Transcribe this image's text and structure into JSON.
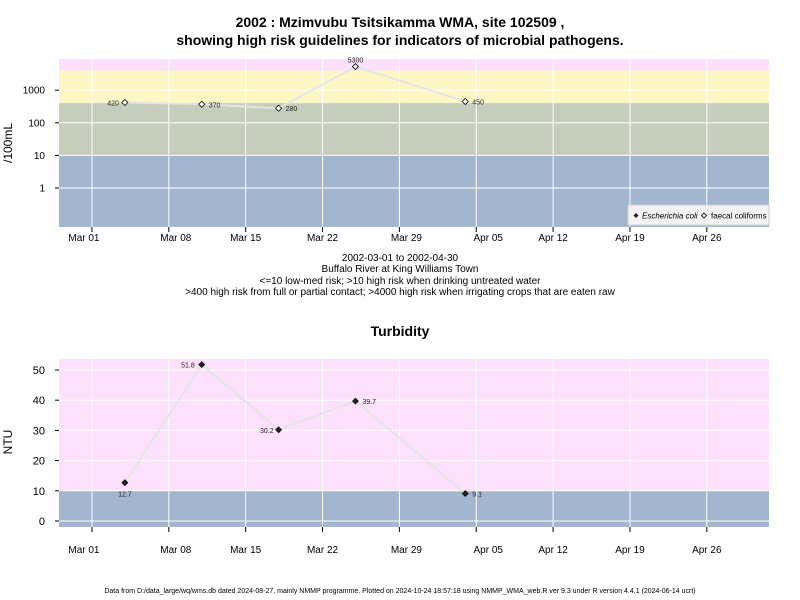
{
  "top_chart": {
    "title_line1": "2002 : Mzimvubu Tsitsikamma WMA, site 102509 ,",
    "title_line2": "showing high risk guidelines for indicators of microbial pathogens.",
    "ylabel": "/100mL",
    "subtitle_lines": [
      "2002-03-01 to 2002-04-30",
      "Buffalo River at King Williams Town",
      "<=10 low-med risk; >10 high risk when drinking untreated water",
      ">400 high risk from full or partial contact; >4000 high risk when irrigating crops that are eaten raw"
    ],
    "legend": {
      "ecoli": "Escherichia coli",
      "faecal": "faecal coliforms"
    }
  },
  "bottom_chart": {
    "title": "Turbidity",
    "ylabel": "NTU"
  },
  "footer": "Data from D:/data_large/wq/wms.db dated 2024-08-27, mainly NMMP programme. Plotted on 2024-10-24 18:57:18 using NMMP_WMA_web.R ver 9.3 under R version 4.4.1 (2024-06-14 ucrt)",
  "colors": {
    "band_blue": "#a3b5cf",
    "band_grey": "#c5cdbd",
    "band_yellow": "#fdf7c5",
    "band_pink": "#fde0fb",
    "line": "#e4e4e4",
    "grid": "#ffffff"
  },
  "chart_data": [
    {
      "type": "line",
      "title": "2002 : Mzimvubu Tsitsikamma WMA, site 102509 , showing high risk guidelines for indicators of microbial pathogens.",
      "ylabel": "/100mL",
      "yscale": "log",
      "x_ticks": [
        "Mar 01",
        "Mar 08",
        "Mar 15",
        "Mar 22",
        "Mar 29",
        "Apr 05",
        "Apr 12",
        "Apr 19",
        "Apr 26"
      ],
      "y_ticks": [
        "1",
        "10",
        "100",
        "1000"
      ],
      "thresholds": [
        10,
        400,
        4000
      ],
      "legend_position": "bottom-right",
      "series": [
        {
          "name": "faecal coliforms",
          "points": [
            {
              "x": "2002-03-04",
              "y": 420
            },
            {
              "x": "2002-03-11",
              "y": 370
            },
            {
              "x": "2002-03-18",
              "y": 280
            },
            {
              "x": "2002-03-25",
              "y": 5300
            },
            {
              "x": "2002-04-04",
              "y": 450
            }
          ]
        },
        {
          "name": "Escherichia coli",
          "points": []
        }
      ]
    },
    {
      "type": "line",
      "title": "Turbidity",
      "ylabel": "NTU",
      "x_ticks": [
        "Mar 01",
        "Mar 08",
        "Mar 15",
        "Mar 22",
        "Mar 29",
        "Apr 05",
        "Apr 12",
        "Apr 19",
        "Apr 26"
      ],
      "y_ticks": [
        "0",
        "10",
        "20",
        "30",
        "40",
        "50"
      ],
      "threshold": 10,
      "series": [
        {
          "name": "",
          "points": [
            {
              "x": "2002-03-04",
              "y": 12.7
            },
            {
              "x": "2002-03-11",
              "y": 51.8
            },
            {
              "x": "2002-03-18",
              "y": 30.2
            },
            {
              "x": "2002-03-25",
              "y": 39.7
            },
            {
              "x": "2002-04-04",
              "y": 9.1
            }
          ]
        }
      ]
    }
  ]
}
